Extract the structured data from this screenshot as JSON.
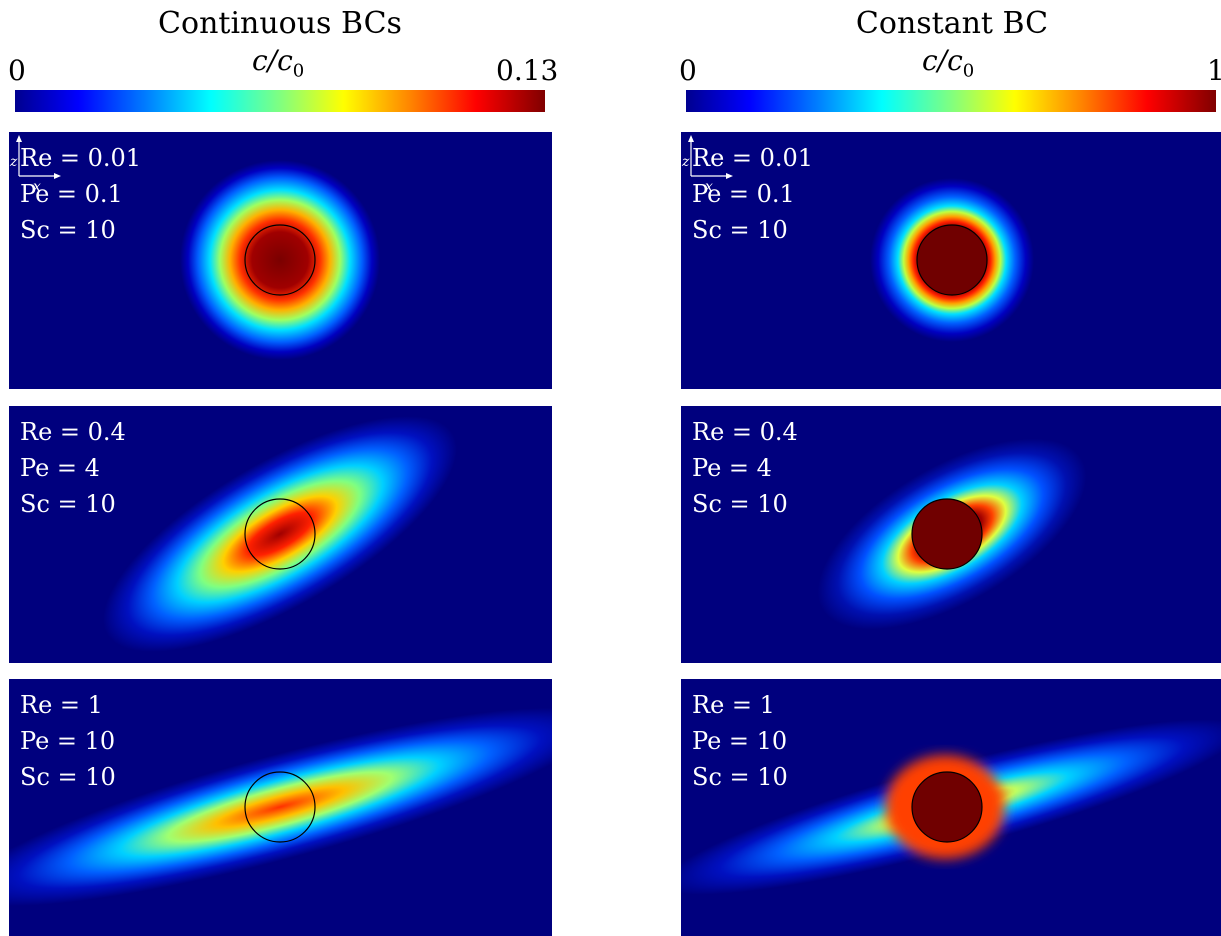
{
  "columns": [
    {
      "title": "Continuous BCs",
      "cb_min": "0",
      "cb_max": "0.13",
      "cb_var": "c/c",
      "cb_sub": "0"
    },
    {
      "title": "Constant BC",
      "cb_min": "0",
      "cb_max": "1",
      "cb_var": "c/c",
      "cb_sub": "0"
    }
  ],
  "rows": [
    {
      "re": "Re = 0.01",
      "pe": "Pe = 0.1",
      "sc": "Sc = 10"
    },
    {
      "re": "Re = 0.4",
      "pe": "Pe = 4",
      "sc": "Sc = 10"
    },
    {
      "re": "Re = 1",
      "pe": "Pe = 10",
      "sc": "Sc = 10"
    }
  ],
  "axes": {
    "x": "x",
    "z": "z"
  },
  "colors": {
    "background": "#00007e",
    "colormap": "jet"
  }
}
